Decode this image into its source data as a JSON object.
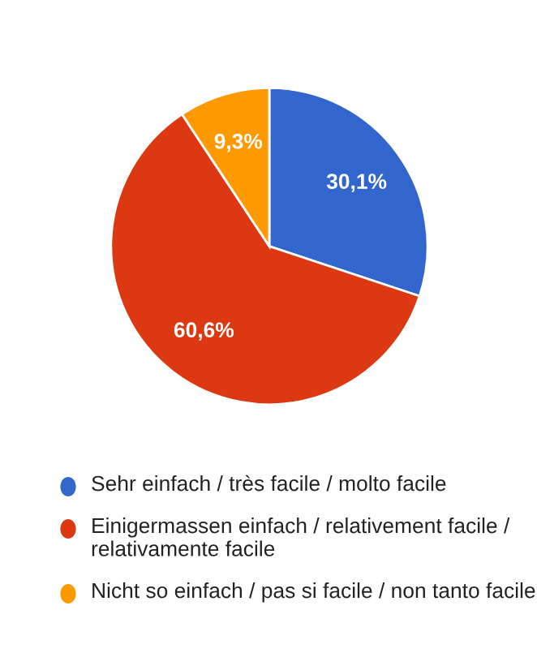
{
  "chart_data": {
    "type": "pie",
    "categories": [
      "Sehr einfach / très facile / molto facile",
      "Einigermassen einfach / relativement facile / relativamente facile",
      "Nicht so einfach / pas si facile / non tanto facile"
    ],
    "values": [
      30.1,
      60.6,
      9.3
    ],
    "value_labels": [
      "30,1%",
      "60,6%",
      "9,3%"
    ],
    "colors": [
      "#3366cc",
      "#dc3912",
      "#ff9900"
    ],
    "legend": "bottom"
  }
}
